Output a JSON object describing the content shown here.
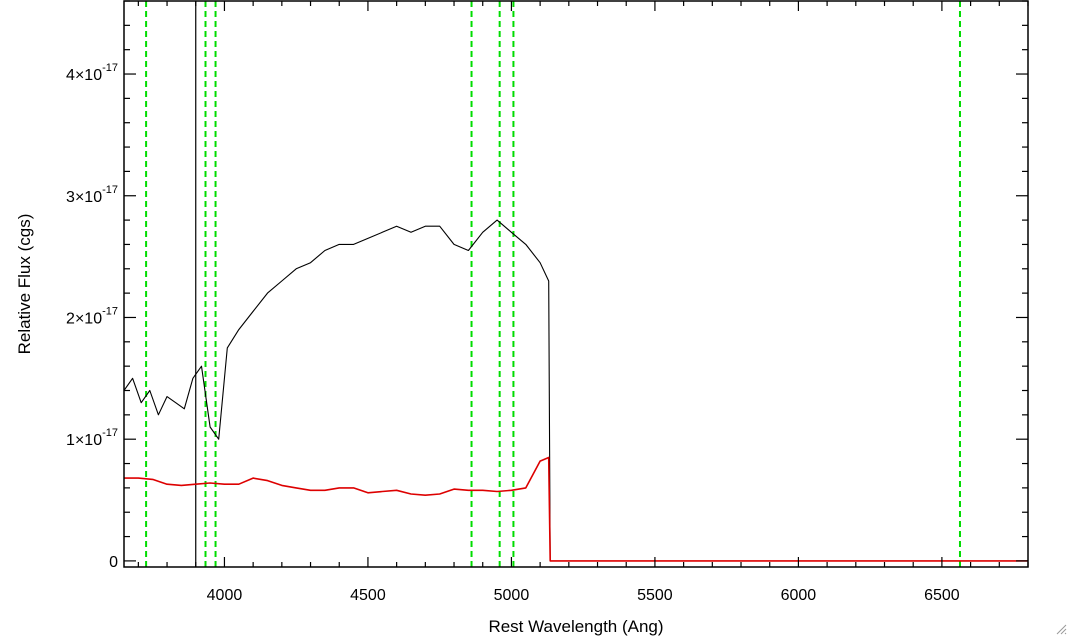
{
  "chart_data": {
    "type": "line",
    "title": "",
    "xlabel": "Rest Wavelength (Ang)",
    "ylabel": "Relative Flux (cgs)",
    "xlim": [
      3650,
      6800
    ],
    "ylim": [
      -5e-19,
      4.6e-17
    ],
    "x_ticks": [
      4000,
      4500,
      5000,
      5500,
      6000,
      6500
    ],
    "x_tick_labels": [
      "4000",
      "4500",
      "5000",
      "5500",
      "6000",
      "6500"
    ],
    "y_ticks": [
      0,
      1e-17,
      2e-17,
      3e-17,
      4e-17
    ],
    "y_tick_labels": [
      {
        "base": "0",
        "exp": ""
      },
      {
        "base": "1×10",
        "exp": "-17"
      },
      {
        "base": "2×10",
        "exp": "-17"
      },
      {
        "base": "3×10",
        "exp": "-17"
      },
      {
        "base": "4×10",
        "exp": "-17"
      }
    ],
    "reference_lines": {
      "color": "#00dd00",
      "style": "dashed",
      "x": [
        3727,
        3934,
        3969,
        4861,
        4959,
        5007,
        6563
      ]
    },
    "vertical_marker": {
      "x": 3900,
      "color": "#000000"
    },
    "series": [
      {
        "color": "#000000",
        "x": [
          3650,
          3680,
          3710,
          3740,
          3770,
          3800,
          3830,
          3860,
          3890,
          3920,
          3950,
          3980,
          4010,
          4050,
          4100,
          4150,
          4200,
          4250,
          4300,
          4350,
          4400,
          4450,
          4500,
          4550,
          4600,
          4650,
          4700,
          4750,
          4800,
          4850,
          4900,
          4950,
          5000,
          5050,
          5100,
          5130,
          5135
        ],
        "y": [
          1.4e-17,
          1.5e-17,
          1.3e-17,
          1.4e-17,
          1.2e-17,
          1.35e-17,
          1.3e-17,
          1.25e-17,
          1.5e-17,
          1.6e-17,
          1.1e-17,
          1e-17,
          1.75e-17,
          1.9e-17,
          2.05e-17,
          2.2e-17,
          2.3e-17,
          2.4e-17,
          2.45e-17,
          2.55e-17,
          2.6e-17,
          2.6e-17,
          2.65e-17,
          2.7e-17,
          2.75e-17,
          2.7e-17,
          2.75e-17,
          2.75e-17,
          2.6e-17,
          2.55e-17,
          2.7e-17,
          2.8e-17,
          2.7e-17,
          2.6e-17,
          2.45e-17,
          2.3e-17,
          0
        ]
      },
      {
        "color": "#dd0000",
        "x": [
          3650,
          3700,
          3750,
          3800,
          3850,
          3900,
          3950,
          4000,
          4050,
          4100,
          4150,
          4200,
          4250,
          4300,
          4350,
          4400,
          4450,
          4500,
          4550,
          4600,
          4650,
          4700,
          4750,
          4800,
          4850,
          4900,
          4950,
          5000,
          5050,
          5100,
          5130,
          5135,
          5200,
          5500,
          6000,
          6500,
          6800
        ],
        "y": [
          6.8e-18,
          6.8e-18,
          6.7e-18,
          6.3e-18,
          6.2e-18,
          6.3e-18,
          6.4e-18,
          6.3e-18,
          6.3e-18,
          6.8e-18,
          6.6e-18,
          6.2e-18,
          6e-18,
          5.8e-18,
          5.8e-18,
          6e-18,
          6e-18,
          5.6e-18,
          5.7e-18,
          5.8e-18,
          5.5e-18,
          5.4e-18,
          5.5e-18,
          5.9e-18,
          5.8e-18,
          5.8e-18,
          5.7e-18,
          5.8e-18,
          6e-18,
          8.2e-18,
          8.5e-18,
          0,
          0,
          0,
          0,
          0,
          0
        ]
      }
    ]
  }
}
